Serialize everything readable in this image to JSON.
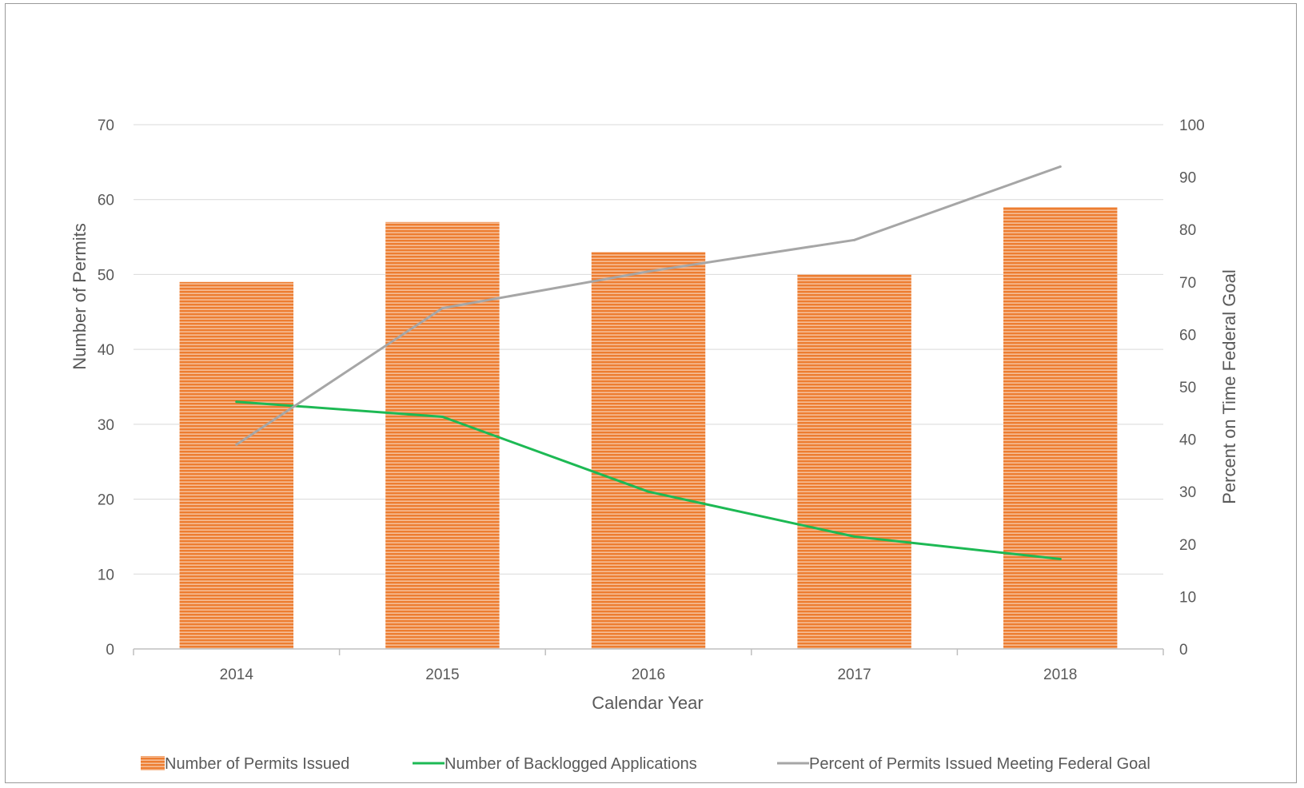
{
  "chart_data": {
    "type": "bar",
    "title": "",
    "categories": [
      "2014",
      "2015",
      "2016",
      "2017",
      "2018"
    ],
    "xlabel": "Calendar Year",
    "ylabel": "Number of Permits",
    "ylabel_right": "Percent on Time Federal Goal",
    "ylim": [
      0,
      70
    ],
    "yticks": [
      "0",
      "10",
      "20",
      "30",
      "40",
      "50",
      "60",
      "70"
    ],
    "ylim_right": [
      0,
      100
    ],
    "yticks_right": [
      "0",
      "10",
      "20",
      "30",
      "40",
      "50",
      "60",
      "70",
      "80",
      "90",
      "100"
    ],
    "grid": true,
    "legend_position": "bottom",
    "series": [
      {
        "name": "Number of Permits Issued",
        "type": "bar",
        "axis": "left",
        "color": "#ED7D31",
        "values": [
          49,
          57,
          53,
          50,
          59
        ]
      },
      {
        "name": "Number of Backlogged Applications",
        "type": "line",
        "axis": "left",
        "color": "#1DB954",
        "values": [
          33,
          31,
          21,
          15,
          12
        ]
      },
      {
        "name": "Percent of Permits Issued Meeting Federal Goal",
        "type": "line",
        "axis": "right",
        "color": "#A6A6A6",
        "values": [
          39,
          65,
          72,
          78,
          92
        ]
      }
    ]
  }
}
